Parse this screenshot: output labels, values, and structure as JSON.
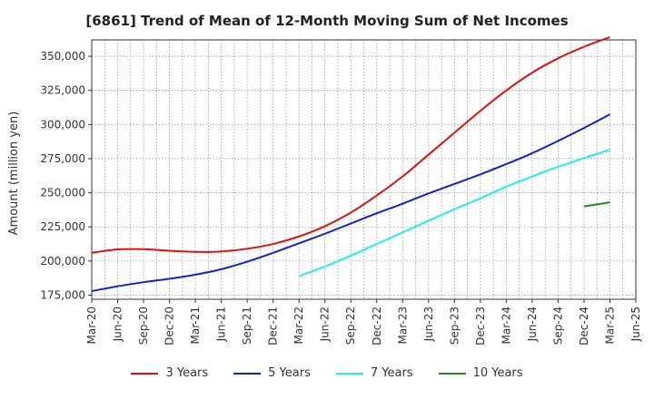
{
  "chart_data": {
    "type": "line",
    "title": "[6861]  Trend of Mean of 12-Month Moving Sum of Net Incomes",
    "ylabel": "Amount (million yen)",
    "xlabel": "",
    "x_ticks": [
      "Mar-20",
      "Jun-20",
      "Sep-20",
      "Dec-20",
      "Mar-21",
      "Jun-21",
      "Sep-21",
      "Dec-21",
      "Mar-22",
      "Jun-22",
      "Sep-22",
      "Dec-22",
      "Mar-23",
      "Jun-23",
      "Sep-23",
      "Dec-23",
      "Mar-24",
      "Jun-24",
      "Sep-24",
      "Dec-24",
      "Mar-25",
      "Jun-25"
    ],
    "y_ticks": [
      175000,
      200000,
      225000,
      250000,
      275000,
      300000,
      325000,
      350000
    ],
    "y_tick_labels": [
      "175,000",
      "200,000",
      "225,000",
      "250,000",
      "275,000",
      "300,000",
      "325,000",
      "350,000"
    ],
    "ylim": [
      172000,
      362000
    ],
    "grid": true,
    "legend_position": "bottom",
    "series": [
      {
        "name": "3 Years",
        "color": "#dd1111",
        "x": [
          "Mar-20",
          "Jun-20",
          "Sep-20",
          "Dec-20",
          "Mar-21",
          "Jun-21",
          "Sep-21",
          "Dec-21",
          "Mar-22",
          "Jun-22",
          "Sep-22",
          "Dec-22",
          "Mar-23",
          "Jun-23",
          "Sep-23",
          "Dec-23",
          "Mar-24",
          "Jun-24",
          "Sep-24",
          "Dec-24",
          "Mar-25"
        ],
        "values": [
          206000,
          208500,
          208700,
          207500,
          206700,
          207000,
          209000,
          212500,
          218000,
          225500,
          235500,
          248000,
          262000,
          278000,
          294000,
          310000,
          325000,
          338000,
          348500,
          357000,
          364000
        ]
      },
      {
        "name": "5 Years",
        "color": "#1122cc",
        "x": [
          "Mar-20",
          "Jun-20",
          "Sep-20",
          "Dec-20",
          "Mar-21",
          "Jun-21",
          "Sep-21",
          "Dec-21",
          "Mar-22",
          "Jun-22",
          "Sep-22",
          "Dec-22",
          "Mar-23",
          "Jun-23",
          "Sep-23",
          "Dec-23",
          "Mar-24",
          "Jun-24",
          "Sep-24",
          "Dec-24",
          "Mar-25"
        ],
        "values": [
          178000,
          181500,
          184500,
          187000,
          190000,
          194000,
          199500,
          206000,
          213000,
          220000,
          227500,
          235000,
          242000,
          249500,
          256500,
          263500,
          271000,
          279000,
          288000,
          297500,
          307500
        ]
      },
      {
        "name": "7 Years",
        "color": "#22eeee",
        "x": [
          "Mar-22",
          "Jun-22",
          "Sep-22",
          "Dec-22",
          "Mar-23",
          "Jun-23",
          "Sep-23",
          "Dec-23",
          "Mar-24",
          "Jun-24",
          "Sep-24",
          "Dec-24",
          "Mar-25"
        ],
        "values": [
          189000,
          196000,
          204000,
          212500,
          221000,
          229500,
          238000,
          246000,
          254500,
          262000,
          269000,
          275500,
          281500
        ]
      },
      {
        "name": "10 Years",
        "color": "#228822",
        "x": [
          "Dec-24",
          "Mar-25"
        ],
        "values": [
          240000,
          243000
        ]
      }
    ]
  }
}
